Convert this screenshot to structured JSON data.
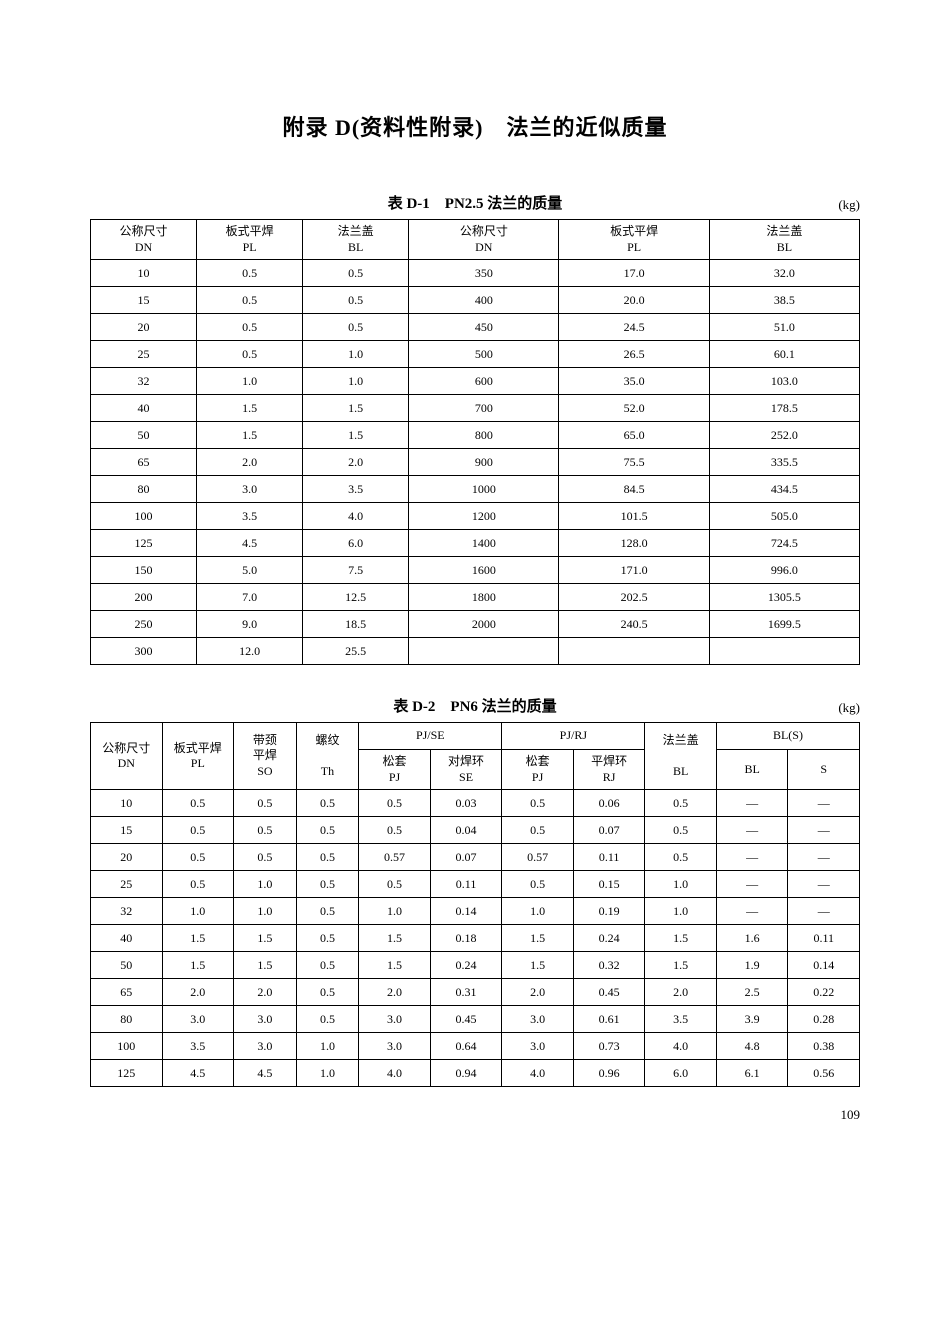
{
  "mainTitle": "附录 D(资料性附录)　法兰的近似质量",
  "unit": "(kg)",
  "pageNumber": "109",
  "table1": {
    "caption": "表 D-1　PN2.5 法兰的质量",
    "headers": {
      "dn": "公称尺寸\nDN",
      "pl": "板式平焊\nPL",
      "bl": "法兰盖\nBL"
    },
    "leftRows": [
      [
        "10",
        "0.5",
        "0.5"
      ],
      [
        "15",
        "0.5",
        "0.5"
      ],
      [
        "20",
        "0.5",
        "0.5"
      ],
      [
        "25",
        "0.5",
        "1.0"
      ],
      [
        "32",
        "1.0",
        "1.0"
      ],
      [
        "40",
        "1.5",
        "1.5"
      ],
      [
        "50",
        "1.5",
        "1.5"
      ],
      [
        "65",
        "2.0",
        "2.0"
      ],
      [
        "80",
        "3.0",
        "3.5"
      ],
      [
        "100",
        "3.5",
        "4.0"
      ],
      [
        "125",
        "4.5",
        "6.0"
      ],
      [
        "150",
        "5.0",
        "7.5"
      ],
      [
        "200",
        "7.0",
        "12.5"
      ],
      [
        "250",
        "9.0",
        "18.5"
      ],
      [
        "300",
        "12.0",
        "25.5"
      ]
    ],
    "rightRows": [
      [
        "350",
        "17.0",
        "32.0"
      ],
      [
        "400",
        "20.0",
        "38.5"
      ],
      [
        "450",
        "24.5",
        "51.0"
      ],
      [
        "500",
        "26.5",
        "60.1"
      ],
      [
        "600",
        "35.0",
        "103.0"
      ],
      [
        "700",
        "52.0",
        "178.5"
      ],
      [
        "800",
        "65.0",
        "252.0"
      ],
      [
        "900",
        "75.5",
        "335.5"
      ],
      [
        "1000",
        "84.5",
        "434.5"
      ],
      [
        "1200",
        "101.5",
        "505.0"
      ],
      [
        "1400",
        "128.0",
        "724.5"
      ],
      [
        "1600",
        "171.0",
        "996.0"
      ],
      [
        "1800",
        "202.5",
        "1305.5"
      ],
      [
        "2000",
        "240.5",
        "1699.5"
      ],
      [
        "",
        "",
        ""
      ]
    ]
  },
  "table2": {
    "caption": "表 D-2　PN6 法兰的质量",
    "headers": {
      "dn": "公称尺寸\nDN",
      "pl": "板式平焊\nPL",
      "so": "带颈\n平焊\nSO",
      "th": "螺纹\n\nTh",
      "pjse": "PJ/SE",
      "pj1": "松套\nPJ",
      "se": "对焊环\nSE",
      "pjrj": "PJ/RJ",
      "pj2": "松套\nPJ",
      "rj": "平焊环\nRJ",
      "bl": "法兰盖\n\nBL",
      "bls": "BL(S)",
      "bl2": "BL",
      "s": "S"
    },
    "rows": [
      [
        "10",
        "0.5",
        "0.5",
        "0.5",
        "0.5",
        "0.03",
        "0.5",
        "0.06",
        "0.5",
        "—",
        "—"
      ],
      [
        "15",
        "0.5",
        "0.5",
        "0.5",
        "0.5",
        "0.04",
        "0.5",
        "0.07",
        "0.5",
        "—",
        "—"
      ],
      [
        "20",
        "0.5",
        "0.5",
        "0.5",
        "0.57",
        "0.07",
        "0.57",
        "0.11",
        "0.5",
        "—",
        "—"
      ],
      [
        "25",
        "0.5",
        "1.0",
        "0.5",
        "0.5",
        "0.11",
        "0.5",
        "0.15",
        "1.0",
        "—",
        "—"
      ],
      [
        "32",
        "1.0",
        "1.0",
        "0.5",
        "1.0",
        "0.14",
        "1.0",
        "0.19",
        "1.0",
        "—",
        "—"
      ],
      [
        "40",
        "1.5",
        "1.5",
        "0.5",
        "1.5",
        "0.18",
        "1.5",
        "0.24",
        "1.5",
        "1.6",
        "0.11"
      ],
      [
        "50",
        "1.5",
        "1.5",
        "0.5",
        "1.5",
        "0.24",
        "1.5",
        "0.32",
        "1.5",
        "1.9",
        "0.14"
      ],
      [
        "65",
        "2.0",
        "2.0",
        "0.5",
        "2.0",
        "0.31",
        "2.0",
        "0.45",
        "2.0",
        "2.5",
        "0.22"
      ],
      [
        "80",
        "3.0",
        "3.0",
        "0.5",
        "3.0",
        "0.45",
        "3.0",
        "0.61",
        "3.5",
        "3.9",
        "0.28"
      ],
      [
        "100",
        "3.5",
        "3.0",
        "1.0",
        "3.0",
        "0.64",
        "3.0",
        "0.73",
        "4.0",
        "4.8",
        "0.38"
      ],
      [
        "125",
        "4.5",
        "4.5",
        "1.0",
        "4.0",
        "0.94",
        "4.0",
        "0.96",
        "6.0",
        "6.1",
        "0.56"
      ]
    ]
  }
}
